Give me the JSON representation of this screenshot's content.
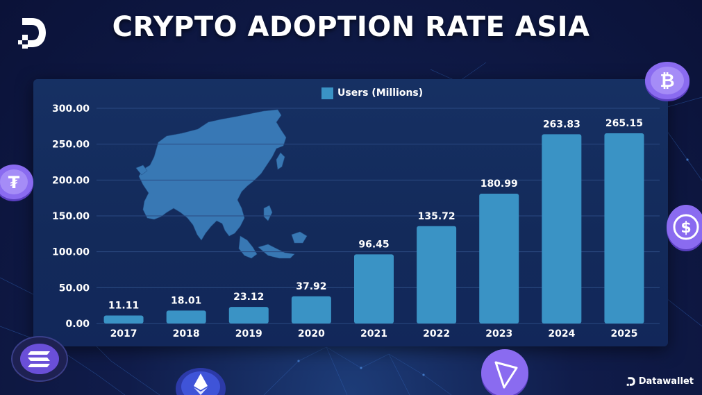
{
  "header": {
    "title": "CRYPTO ADOPTION RATE ASIA"
  },
  "brand": {
    "name": "Datawallet"
  },
  "icons": {
    "logo": "datawallet-logo-icon",
    "coins": [
      "bitcoin-coin-icon",
      "tether-coin-icon",
      "usdc-coin-icon",
      "solana-coin-icon",
      "ethereum-coin-icon",
      "tron-coin-icon"
    ],
    "map": "asia-map-icon"
  },
  "colors": {
    "bar": "#3a93c5",
    "accent_purple": "#8a6bf0",
    "background": "#0e1a48"
  },
  "chart_data": {
    "type": "bar",
    "title": "CRYPTO ADOPTION RATE ASIA",
    "legend": {
      "label": "Users (Millions)",
      "position": "top-center"
    },
    "categories": [
      "2017",
      "2018",
      "2019",
      "2020",
      "2021",
      "2022",
      "2023",
      "2024",
      "2025"
    ],
    "values": [
      11.11,
      18.01,
      23.12,
      37.92,
      96.45,
      135.72,
      180.99,
      263.83,
      265.15
    ],
    "value_labels": [
      "11.11",
      "18.01",
      "23.12",
      "37.92",
      "96.45",
      "135.72",
      "180.99",
      "263.83",
      "265.15"
    ],
    "yticks": [
      "0.00",
      "50.00",
      "100.00",
      "150.00",
      "200.00",
      "250.00",
      "300.00"
    ],
    "ylim": [
      0,
      300
    ],
    "xlabel": "",
    "ylabel": "",
    "grid": true
  }
}
